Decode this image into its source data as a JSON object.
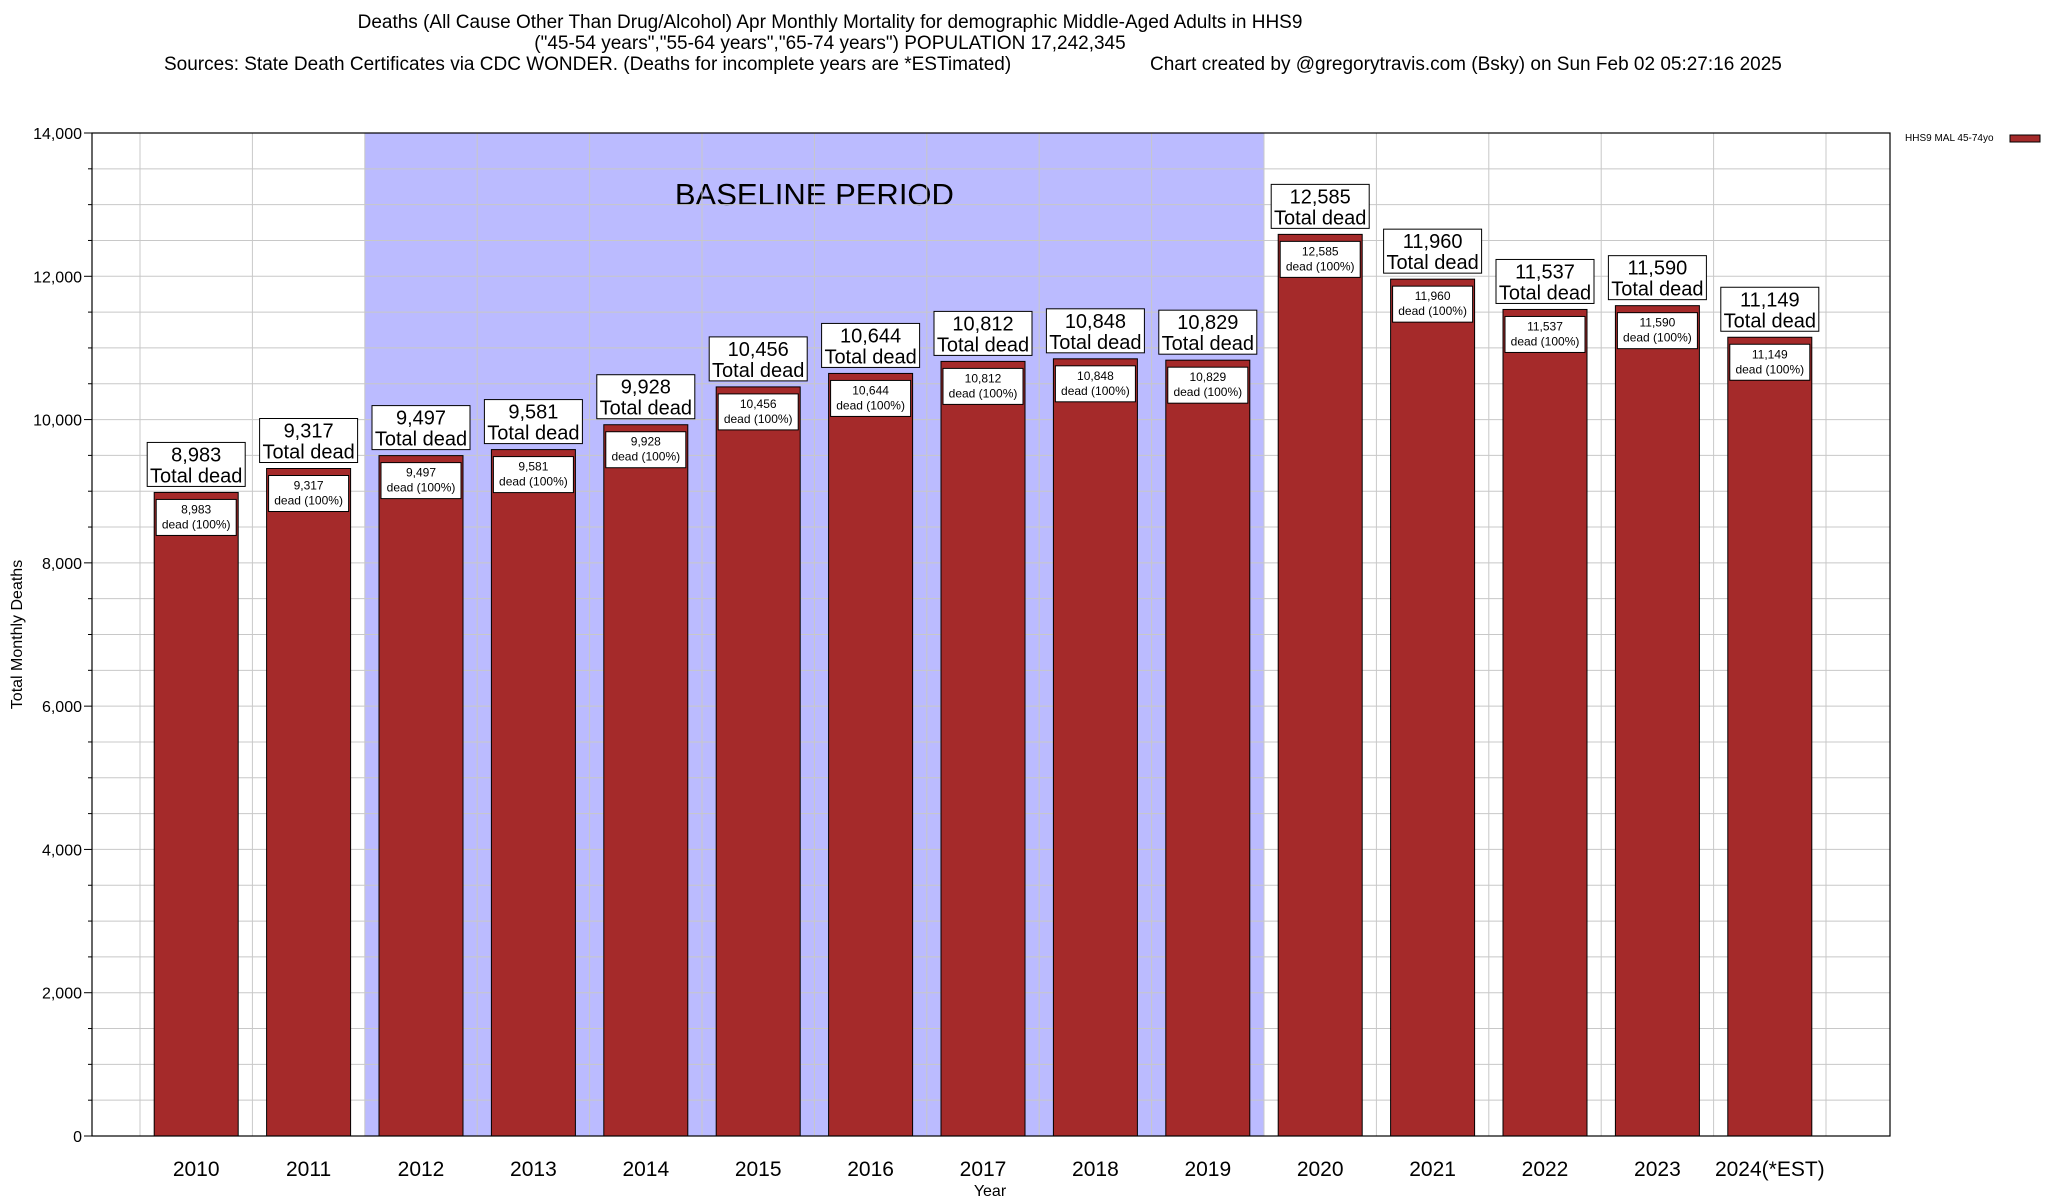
{
  "title": {
    "line1": "Deaths (All Cause Other Than Drug/Alcohol) Apr Monthly Mortality for demographic Middle-Aged Adults in HHS9",
    "line2": "(\"45-54 years\",\"55-64 years\",\"65-74 years\") POPULATION 17,242,345",
    "sources": "Sources: State Death Certificates via CDC WONDER. (Deaths for incomplete years are *ESTimated)",
    "credit": "Chart created by @gregorytravis.com (Bsky) on Sun Feb 02 05:27:16 2025"
  },
  "colors": {
    "bar": "#a52a2a",
    "baseline_band": "#bbbbff",
    "grid": "#c8c8c8"
  },
  "chart_data": {
    "type": "bar",
    "title": "Deaths (All Cause Other Than Drug/Alcohol) Apr Monthly Mortality for demographic Middle-Aged Adults in HHS9",
    "xlabel": "Year",
    "ylabel": "Total Monthly Deaths",
    "ylim": [
      0,
      14000
    ],
    "yticks": [
      0,
      2000,
      4000,
      6000,
      8000,
      10000,
      12000,
      14000
    ],
    "ytick_labels": [
      "0",
      "2,000",
      "4,000",
      "6,000",
      "8,000",
      "10,000",
      "12,000",
      "14,000"
    ],
    "grid": true,
    "legend": {
      "placement": "top-right",
      "label": "HHS9 MAL 45-74yo"
    },
    "baseline": {
      "label": "BASELINE PERIOD",
      "start": "2012",
      "end": "2019"
    },
    "total_label_suffix": "Total dead",
    "inner_label_suffix": "dead (100%)",
    "categories": [
      "2010",
      "2011",
      "2012",
      "2013",
      "2014",
      "2015",
      "2016",
      "2017",
      "2018",
      "2019",
      "2020",
      "2021",
      "2022",
      "2023",
      "2024(*EST)"
    ],
    "values": [
      8983,
      9317,
      9497,
      9581,
      9928,
      10456,
      10644,
      10812,
      10848,
      10829,
      12585,
      11960,
      11537,
      11590,
      11149
    ],
    "value_labels": [
      "8,983",
      "9,317",
      "9,497",
      "9,581",
      "9,928",
      "10,456",
      "10,644",
      "10,812",
      "10,848",
      "10,829",
      "12,585",
      "11,960",
      "11,537",
      "11,590",
      "11,149"
    ]
  }
}
